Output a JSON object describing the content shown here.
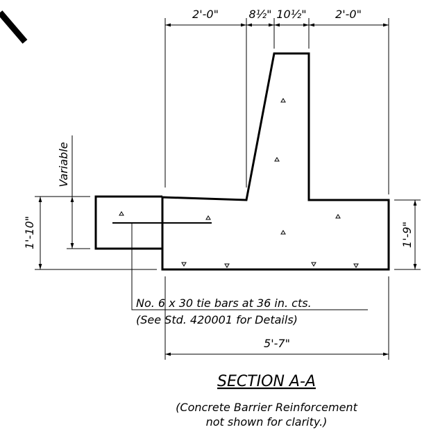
{
  "dimensions": {
    "top": [
      "2'-0\"",
      "8½\"",
      "10½\"",
      "2'-0\""
    ],
    "variable": "Variable",
    "left": "1'-10\"",
    "right": "1'-9\"",
    "bottom": "5'-7\""
  },
  "note": {
    "line1": "No. 6 x 30 tie bars at 36 in. cts.",
    "line2": "(See Std. 420001 for Details)"
  },
  "section": {
    "title": "SECTION A-A",
    "caption": [
      "(Concrete Barrier Reinforcement",
      "not shown for clarity.)"
    ]
  }
}
